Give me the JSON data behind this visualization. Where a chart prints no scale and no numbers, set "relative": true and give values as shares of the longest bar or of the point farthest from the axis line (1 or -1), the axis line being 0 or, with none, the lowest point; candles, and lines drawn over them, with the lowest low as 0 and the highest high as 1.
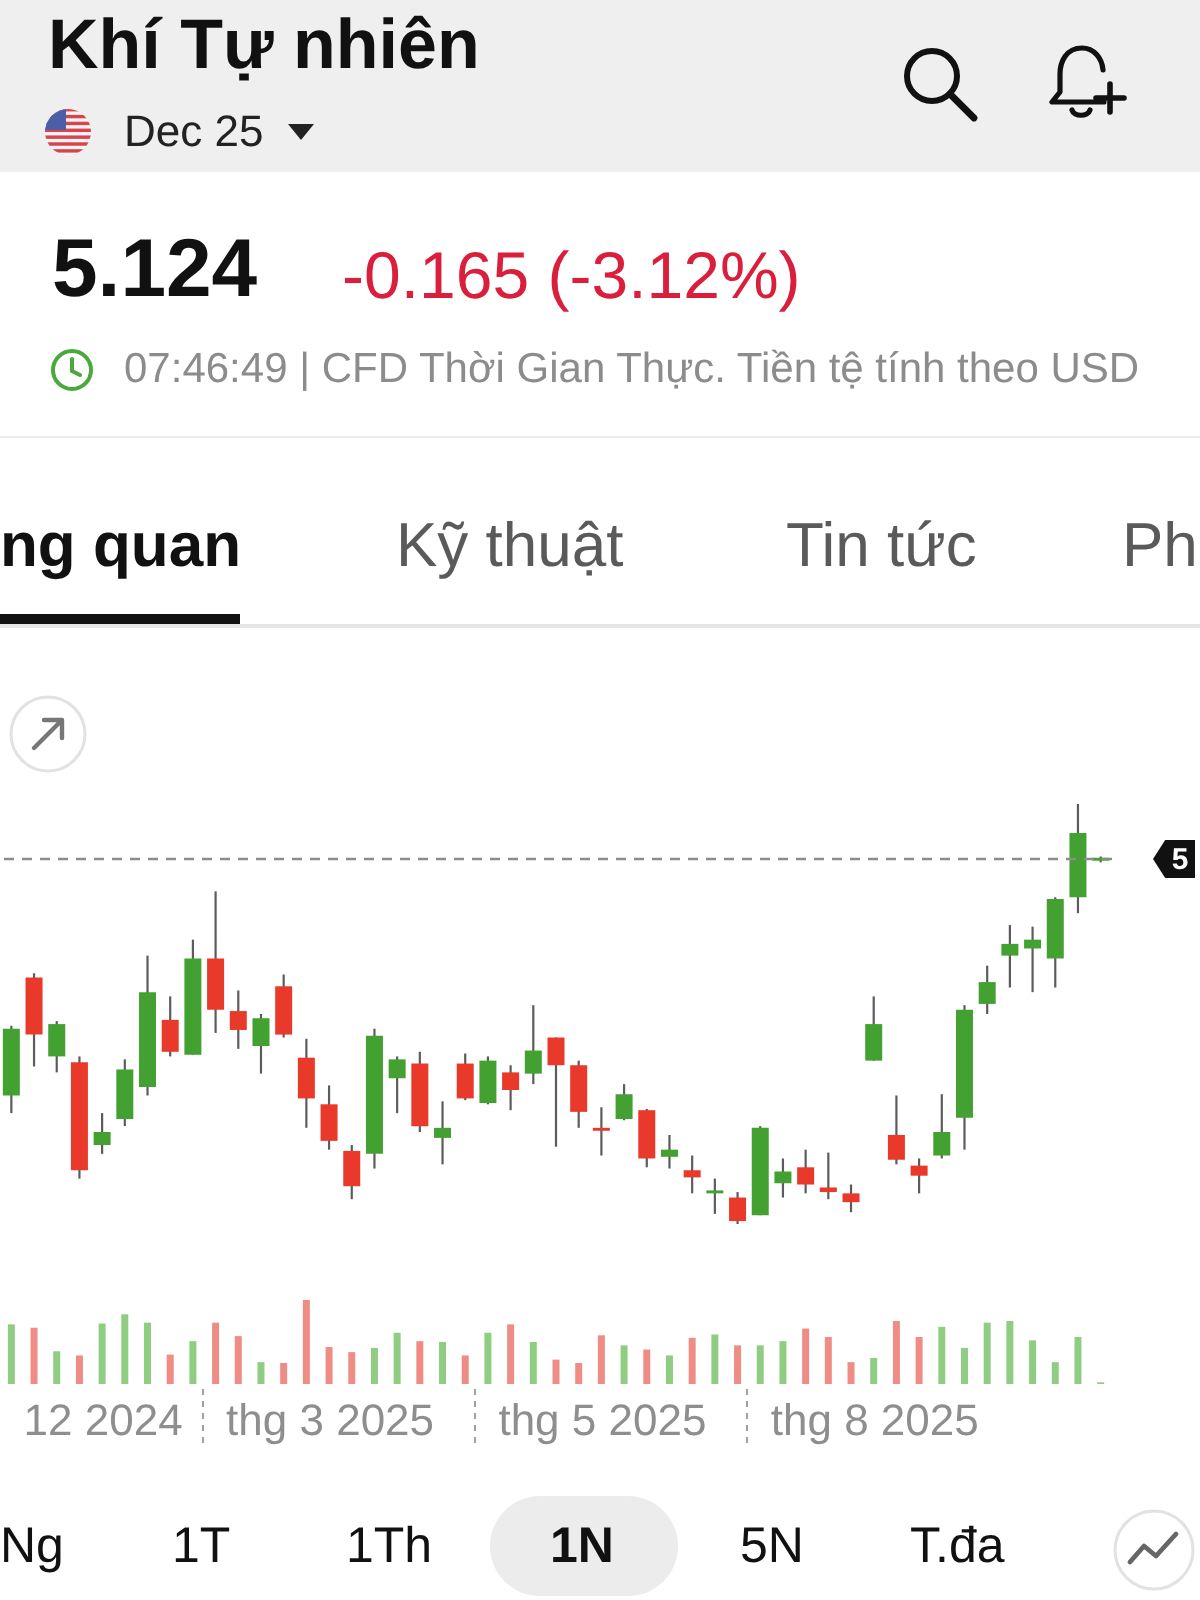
{
  "chart_data": [
    {
      "type": "candlestick",
      "title": "Khí Tự nhiên",
      "subtitle": "Dec 25",
      "relative": true,
      "categories": [
        null,
        null,
        null,
        null,
        null,
        null,
        null,
        null,
        null,
        null,
        null,
        null,
        null,
        null,
        null,
        null,
        null,
        null,
        null,
        null,
        null,
        null,
        null,
        null,
        null,
        null,
        null,
        null,
        null,
        null,
        null,
        null,
        null,
        null,
        null,
        null,
        null,
        null,
        null,
        null,
        null,
        null,
        null,
        null,
        null,
        null,
        null,
        null,
        null
      ],
      "ohlc": [
        [
          0.306,
          0.472,
          0.264,
          0.465
        ],
        [
          0.587,
          0.597,
          0.375,
          0.451
        ],
        [
          0.399,
          0.483,
          0.361,
          0.476
        ],
        [
          0.385,
          0.399,
          0.108,
          0.128
        ],
        [
          0.188,
          0.264,
          0.167,
          0.219
        ],
        [
          0.25,
          0.392,
          0.233,
          0.368
        ],
        [
          0.326,
          0.639,
          0.306,
          0.552
        ],
        [
          0.486,
          0.542,
          0.399,
          0.41
        ],
        [
          0.403,
          0.677,
          0.403,
          0.632
        ],
        [
          0.632,
          0.792,
          0.455,
          0.51
        ],
        [
          0.507,
          0.556,
          0.417,
          0.462
        ],
        [
          0.424,
          0.5,
          0.358,
          0.49
        ],
        [
          0.566,
          0.594,
          0.444,
          0.451
        ],
        [
          0.396,
          0.441,
          0.229,
          0.299
        ],
        [
          0.285,
          0.33,
          0.177,
          0.198
        ],
        [
          0.174,
          0.188,
          0.059,
          0.09
        ],
        [
          0.167,
          0.465,
          0.132,
          0.448
        ],
        [
          0.347,
          0.399,
          0.264,
          0.392
        ],
        [
          0.382,
          0.41,
          0.219,
          0.233
        ],
        [
          0.205,
          0.292,
          0.142,
          0.229
        ],
        [
          0.382,
          0.406,
          0.295,
          0.299
        ],
        [
          0.288,
          0.399,
          0.285,
          0.389
        ],
        [
          0.361,
          0.378,
          0.271,
          0.319
        ],
        [
          0.358,
          0.521,
          0.333,
          0.413
        ],
        [
          0.444,
          0.444,
          0.184,
          0.378
        ],
        [
          0.378,
          0.389,
          0.229,
          0.267
        ],
        [
          0.229,
          0.278,
          0.163,
          0.222
        ],
        [
          0.25,
          0.333,
          0.247,
          0.309
        ],
        [
          0.271,
          0.274,
          0.135,
          0.156
        ],
        [
          0.16,
          0.212,
          0.132,
          0.177
        ],
        [
          0.128,
          0.163,
          0.073,
          0.111
        ],
        [
          0.073,
          0.108,
          0.024,
          0.08
        ],
        [
          0.063,
          0.076,
          0,
          0.007
        ],
        [
          0.021,
          0.233,
          0.021,
          0.229
        ],
        [
          0.097,
          0.156,
          0.063,
          0.125
        ],
        [
          0.135,
          0.177,
          0.073,
          0.094
        ],
        [
          0.087,
          0.17,
          0.059,
          0.076
        ],
        [
          0.073,
          0.094,
          0.028,
          0.052
        ],
        [
          0.389,
          0.542,
          0.389,
          0.476
        ],
        [
          0.212,
          0.306,
          0.142,
          0.153
        ],
        [
          0.139,
          0.156,
          0.073,
          0.115
        ],
        [
          0.163,
          0.309,
          0.156,
          0.219
        ],
        [
          0.253,
          0.521,
          0.177,
          0.51
        ],
        [
          0.524,
          0.615,
          0.5,
          0.576
        ],
        [
          0.639,
          0.712,
          0.563,
          0.667
        ],
        [
          0.656,
          0.708,
          0.552,
          0.677
        ],
        [
          0.632,
          0.778,
          0.563,
          0.774
        ],
        [
          0.778,
          1,
          0.74,
          0.931
        ],
        [
          0.865,
          0.875,
          0.861,
          0.872
        ]
      ],
      "colors": [
        "#43a131",
        "#e8392b",
        "#43a131",
        "#e8392b",
        "#43a131",
        "#43a131",
        "#43a131",
        "#e8392b",
        "#43a131",
        "#e8392b",
        "#e8392b",
        "#43a131",
        "#e8392b",
        "#e8392b",
        "#e8392b",
        "#e8392b",
        "#43a131",
        "#43a131",
        "#e8392b",
        "#43a131",
        "#e8392b",
        "#43a131",
        "#e8392b",
        "#43a131",
        "#e8392b",
        "#e8392b",
        "#e8392b",
        "#43a131",
        "#e8392b",
        "#43a131",
        "#e8392b",
        "#43a131",
        "#e8392b",
        "#43a131",
        "#43a131",
        "#e8392b",
        "#e8392b",
        "#e8392b",
        "#43a131",
        "#e8392b",
        "#e8392b",
        "#43a131",
        "#43a131",
        "#43a131",
        "#43a131",
        "#43a131",
        "#43a131",
        "#43a131",
        "#43a131"
      ],
      "ref_lines": [
        {
          "axis": "y",
          "value": 0.869,
          "color": "#8c8c8c",
          "line_style": "dashed"
        }
      ],
      "annotations": [
        "5.124",
        "-0.165 (-3.12%)",
        "07:46:49 | CFD Thời Gian Thực. Tiền tệ tính theo USD",
        "ng quan",
        "Kỹ thuật",
        "Tin tức",
        "Ph",
        "Ng",
        "1T",
        "1Th",
        "1N",
        "5N",
        "T.đa",
        "5"
      ]
    },
    {
      "type": "bar",
      "relative": true,
      "categories": [
        null,
        null,
        null,
        null,
        "12 2024",
        null,
        null,
        null,
        null,
        null,
        null,
        null,
        null,
        null,
        "thg 3 2025",
        null,
        null,
        null,
        null,
        null,
        null,
        null,
        null,
        null,
        null,
        null,
        "thg 5 2025",
        null,
        null,
        null,
        null,
        null,
        null,
        null,
        null,
        null,
        null,
        null,
        "thg 8 2025",
        null,
        null,
        null,
        null,
        null,
        null,
        null,
        null,
        null,
        null
      ],
      "values": [
        0.71,
        0.67,
        0.39,
        0.34,
        0.72,
        0.83,
        0.73,
        0.35,
        0.51,
        0.73,
        0.57,
        0.26,
        0.25,
        1,
        0.44,
        0.38,
        0.43,
        0.61,
        0.51,
        0.5,
        0.34,
        0.61,
        0.71,
        0.5,
        0.29,
        0.25,
        0.58,
        0.46,
        0.41,
        0.34,
        0.55,
        0.59,
        0.46,
        0.46,
        0.51,
        0.66,
        0.56,
        0.26,
        0.31,
        0.75,
        0.56,
        0.68,
        0.43,
        0.73,
        0.75,
        0.52,
        0.26,
        0.56,
        0.02
      ],
      "colors": [
        "#8fcd82",
        "#ef8d84",
        "#8fcd82",
        "#ef8d84",
        "#8fcd82",
        "#8fcd82",
        "#8fcd82",
        "#ef8d84",
        "#8fcd82",
        "#ef8d84",
        "#ef8d84",
        "#8fcd82",
        "#ef8d84",
        "#ef8d84",
        "#ef8d84",
        "#ef8d84",
        "#8fcd82",
        "#8fcd82",
        "#ef8d84",
        "#8fcd82",
        "#ef8d84",
        "#8fcd82",
        "#ef8d84",
        "#8fcd82",
        "#ef8d84",
        "#ef8d84",
        "#ef8d84",
        "#8fcd82",
        "#ef8d84",
        "#8fcd82",
        "#ef8d84",
        "#8fcd82",
        "#ef8d84",
        "#8fcd82",
        "#8fcd82",
        "#ef8d84",
        "#ef8d84",
        "#ef8d84",
        "#8fcd82",
        "#ef8d84",
        "#ef8d84",
        "#8fcd82",
        "#8fcd82",
        "#8fcd82",
        "#8fcd82",
        "#8fcd82",
        "#8fcd82",
        "#8fcd82",
        "#8fcd82"
      ]
    }
  ]
}
